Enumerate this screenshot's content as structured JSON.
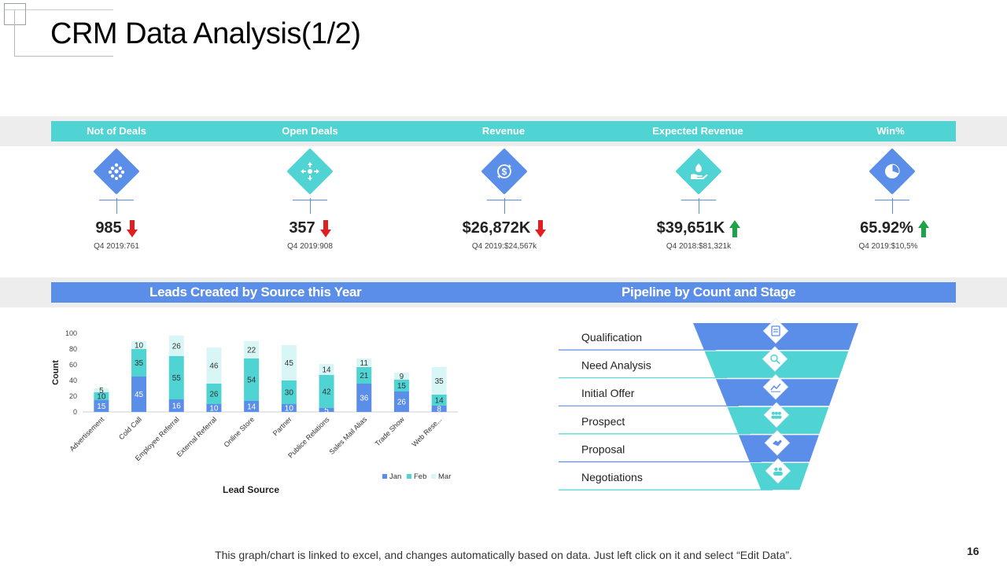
{
  "title": "CRM Data Analysis(1/2)",
  "colors": {
    "teal": "#4fd3d3",
    "blue": "#5b8ee8",
    "light": "#d9f6f6",
    "down": "#e02020",
    "up": "#1fa34a"
  },
  "kpis": [
    {
      "label": "Not of Deals",
      "value": "985",
      "trend": "down",
      "compare": "Q4 2019:761",
      "icon": "network-icon",
      "color": "#5b8ee8"
    },
    {
      "label": "Open Deals",
      "value": "357",
      "trend": "down",
      "compare": "Q4 2019:908",
      "icon": "share-arrows-icon",
      "color": "#4fd3d3"
    },
    {
      "label": "Revenue",
      "value": "$26,872K",
      "trend": "down",
      "compare": "Q4 2019:$24,567k",
      "icon": "dollar-cycle-icon",
      "color": "#5b8ee8"
    },
    {
      "label": "Expected Revenue",
      "value": "$39,651K",
      "trend": "up",
      "compare": "Q4 2018:$81,321k",
      "icon": "money-hand-icon",
      "color": "#4fd3d3"
    },
    {
      "label": "Win%",
      "value": "65.92%",
      "trend": "up",
      "compare": "Q4 2019:$10,5%",
      "icon": "pie-chart-icon",
      "color": "#5b8ee8"
    }
  ],
  "leads_title": "Leads Created by Source this Year",
  "pipeline_title": "Pipeline by Count and Stage",
  "chart_data": {
    "type": "bar",
    "stacked": true,
    "categories": [
      "Advertisement",
      "Cold Call",
      "Employee Referral",
      "External Referral",
      "Online Store",
      "Partner",
      "Publice Relations",
      "Sales Mail Alias",
      "Trade Show",
      "Web Rese..."
    ],
    "series": [
      {
        "name": "Jan",
        "values": [
          15,
          45,
          16,
          10,
          14,
          10,
          5,
          36,
          26,
          8
        ]
      },
      {
        "name": "Feb",
        "values": [
          10,
          35,
          55,
          26,
          54,
          30,
          42,
          21,
          15,
          14
        ]
      },
      {
        "name": "Mar",
        "values": [
          5,
          10,
          26,
          46,
          22,
          45,
          14,
          11,
          9,
          35
        ]
      }
    ],
    "yticks": [
      0,
      20,
      40,
      60,
      80,
      100
    ],
    "ylim": [
      0,
      100
    ],
    "xlabel": "Lead Source",
    "ylabel": "Count",
    "legend": "bottom-right",
    "colors": [
      "#5b8ee8",
      "#4fd3d3",
      "#d9f6f6"
    ]
  },
  "pipeline": [
    {
      "stage": "Qualification",
      "icon": "document-icon"
    },
    {
      "stage": "Need Analysis",
      "icon": "magnifier-icon"
    },
    {
      "stage": "Initial Offer",
      "icon": "chart-icon"
    },
    {
      "stage": "Prospect",
      "icon": "group-icon"
    },
    {
      "stage": "Proposal",
      "icon": "handshake-icon"
    },
    {
      "stage": "Negotiations",
      "icon": "people-icon"
    }
  ],
  "footer": "This graph/chart is linked to excel, and changes automatically based on data. Just left click on it and select “Edit Data”.",
  "page_number": "16"
}
